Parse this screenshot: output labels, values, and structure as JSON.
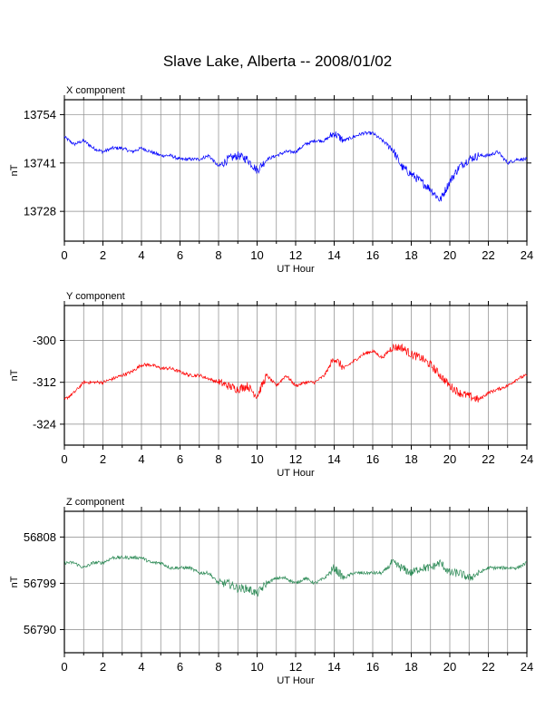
{
  "title": "Slave Lake, Alberta -- 2008/01/02",
  "chart_data": [
    {
      "type": "line",
      "panel_label": "X component",
      "xlabel": "UT Hour",
      "ylabel": "nT",
      "xlim": [
        0,
        24
      ],
      "ylim": [
        13720,
        13758
      ],
      "x_ticks": [
        0,
        2,
        4,
        6,
        8,
        10,
        12,
        14,
        16,
        18,
        20,
        22,
        24
      ],
      "y_ticks": [
        13728,
        13741,
        13754
      ],
      "grid": true,
      "color": "#0000ff",
      "series": [
        {
          "x": [
            0,
            0.5,
            1,
            1.5,
            2,
            2.5,
            3,
            3.5,
            4,
            4.5,
            5,
            5.5,
            6,
            6.5,
            7,
            7.5,
            8,
            8.5,
            9,
            9.5,
            10,
            10.5,
            11,
            11.5,
            12,
            12.5,
            13,
            13.5,
            14,
            14.5,
            15,
            15.5,
            16,
            16.5,
            17,
            17.5,
            18,
            18.5,
            19,
            19.5,
            20,
            20.5,
            21,
            21.5,
            22,
            22.5,
            23,
            23.5,
            24
          ],
          "y": [
            13748,
            13746,
            13747,
            13745,
            13744,
            13745,
            13745,
            13744,
            13745,
            13744,
            13743,
            13743,
            13742,
            13742,
            13742,
            13743,
            13740,
            13742,
            13743,
            13742,
            13739,
            13742,
            13743,
            13744,
            13744,
            13746,
            13747,
            13747,
            13749,
            13747,
            13748,
            13749,
            13749,
            13747,
            13745,
            13740,
            13738,
            13736,
            13734,
            13731,
            13736,
            13740,
            13742,
            13743,
            13743,
            13744,
            13741,
            13742,
            13742
          ]
        }
      ]
    },
    {
      "type": "line",
      "panel_label": "Y component",
      "xlabel": "UT Hour",
      "ylabel": "nT",
      "xlim": [
        0,
        24
      ],
      "ylim": [
        -330,
        -290
      ],
      "x_ticks": [
        0,
        2,
        4,
        6,
        8,
        10,
        12,
        14,
        16,
        18,
        20,
        22,
        24
      ],
      "y_ticks": [
        -324,
        -312,
        -300
      ],
      "grid": true,
      "color": "#ff0000",
      "series": [
        {
          "x": [
            0,
            0.5,
            1,
            1.5,
            2,
            2.5,
            3,
            3.5,
            4,
            4.5,
            5,
            5.5,
            6,
            6.5,
            7,
            7.5,
            8,
            8.5,
            9,
            9.5,
            10,
            10.5,
            11,
            11.5,
            12,
            12.5,
            13,
            13.5,
            14,
            14.5,
            15,
            15.5,
            16,
            16.5,
            17,
            17.5,
            18,
            18.5,
            19,
            19.5,
            20,
            20.5,
            21,
            21.5,
            22,
            22.5,
            23,
            23.5,
            24
          ],
          "y": [
            -317,
            -315,
            -312,
            -312,
            -312,
            -311,
            -310,
            -309,
            -307,
            -307,
            -308,
            -308,
            -309,
            -310,
            -310,
            -311,
            -312,
            -313,
            -314,
            -313,
            -316,
            -310,
            -313,
            -310,
            -313,
            -312,
            -312,
            -310,
            -305,
            -308,
            -306,
            -304,
            -303,
            -305,
            -302,
            -302,
            -304,
            -305,
            -307,
            -310,
            -313,
            -315,
            -316,
            -317,
            -315,
            -314,
            -313,
            -311,
            -310
          ]
        }
      ]
    },
    {
      "type": "line",
      "panel_label": "Z component",
      "xlabel": "UT Hour",
      "ylabel": "nT",
      "xlim": [
        0,
        24
      ],
      "ylim": [
        56785.5,
        56813
      ],
      "x_ticks": [
        0,
        2,
        4,
        6,
        8,
        10,
        12,
        14,
        16,
        18,
        20,
        22,
        24
      ],
      "y_ticks": [
        56790,
        56799,
        56808
      ],
      "grid": true,
      "color": "#2e8b57",
      "series": [
        {
          "x": [
            0,
            0.5,
            1,
            1.5,
            2,
            2.5,
            3,
            3.5,
            4,
            4.5,
            5,
            5.5,
            6,
            6.5,
            7,
            7.5,
            8,
            8.5,
            9,
            9.5,
            10,
            10.5,
            11,
            11.5,
            12,
            12.5,
            13,
            13.5,
            14,
            14.5,
            15,
            15.5,
            16,
            16.5,
            17,
            17.5,
            18,
            18.5,
            19,
            19.5,
            20,
            20.5,
            21,
            21.5,
            22,
            22.5,
            23,
            23.5,
            24
          ],
          "y": [
            56803,
            56803,
            56802,
            56803,
            56803,
            56804,
            56804,
            56804,
            56804,
            56803,
            56803,
            56802,
            56802,
            56802,
            56801,
            56801,
            56799,
            56799,
            56798,
            56798,
            56797,
            56799,
            56800,
            56800,
            56799,
            56800,
            56799,
            56800,
            56802,
            56800,
            56801,
            56801,
            56801,
            56801,
            56803,
            56802,
            56801,
            56802,
            56802,
            56803,
            56801,
            56801,
            56800,
            56801,
            56802,
            56802,
            56802,
            56802,
            56803
          ]
        }
      ]
    }
  ]
}
